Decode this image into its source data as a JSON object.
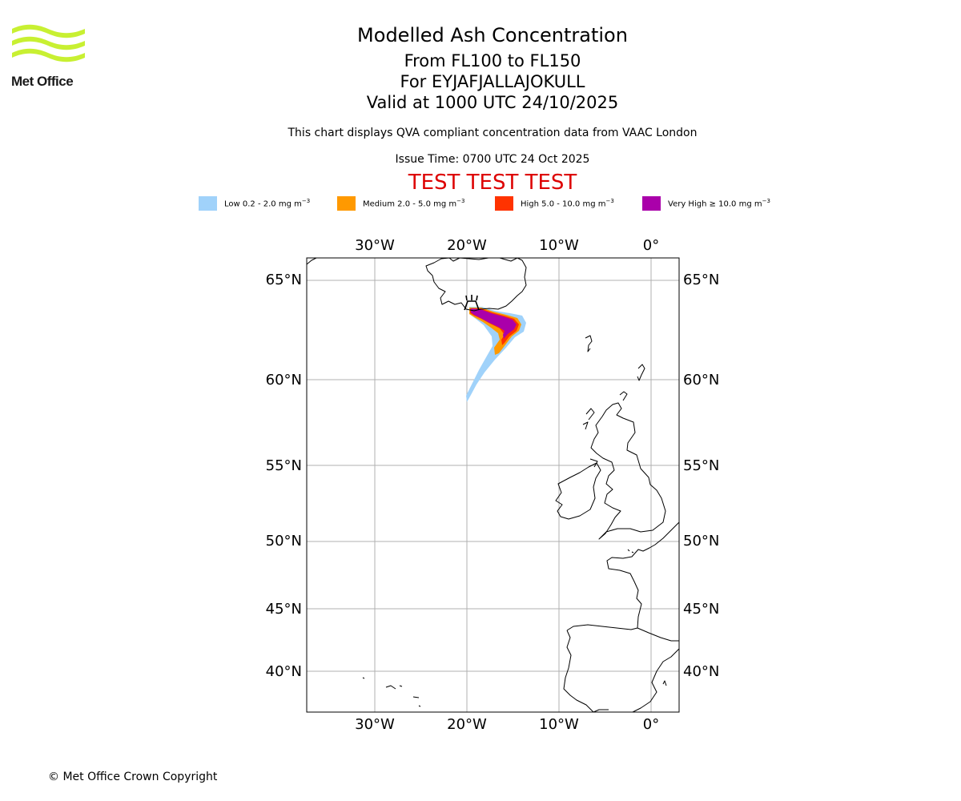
{
  "logo": {
    "name": "Met Office"
  },
  "header": {
    "title": "Modelled Ash Concentration",
    "levels": "From FL100 to FL150",
    "volcano": "For EYJAFJALLAJOKULL",
    "valid": "Valid at 1000 UTC 24/10/2025",
    "subtitle": "This chart displays QVA compliant concentration data from VAAC London",
    "issue_time": "Issue Time: 0700 UTC 24 Oct 2025",
    "test_banner": "TEST TEST TEST"
  },
  "legend": [
    {
      "label": "Low 0.2 - 2.0 mg m",
      "exp": "−3",
      "color": "#a0d2fa"
    },
    {
      "label": "Medium 2.0 - 5.0 mg m",
      "exp": "−3",
      "color": "#ff9900"
    },
    {
      "label": "High 5.0 - 10.0 mg m",
      "exp": "−3",
      "color": "#ff3300"
    },
    {
      "label": "Very High ≥ 10.0 mg m",
      "exp": "−3",
      "color": "#aa00aa"
    }
  ],
  "map": {
    "lon_labels": [
      "30°W",
      "20°W",
      "10°W",
      "0°"
    ],
    "lat_labels": [
      "65°N",
      "60°N",
      "55°N",
      "50°N",
      "45°N",
      "40°N"
    ],
    "extent": {
      "lon_min": -37.5,
      "lon_max": 3,
      "lat_min": 37,
      "lat_max": 66
    },
    "grid_color": "#b0b0b0"
  },
  "footer": {
    "copyright": "© Met Office Crown Copyright"
  }
}
